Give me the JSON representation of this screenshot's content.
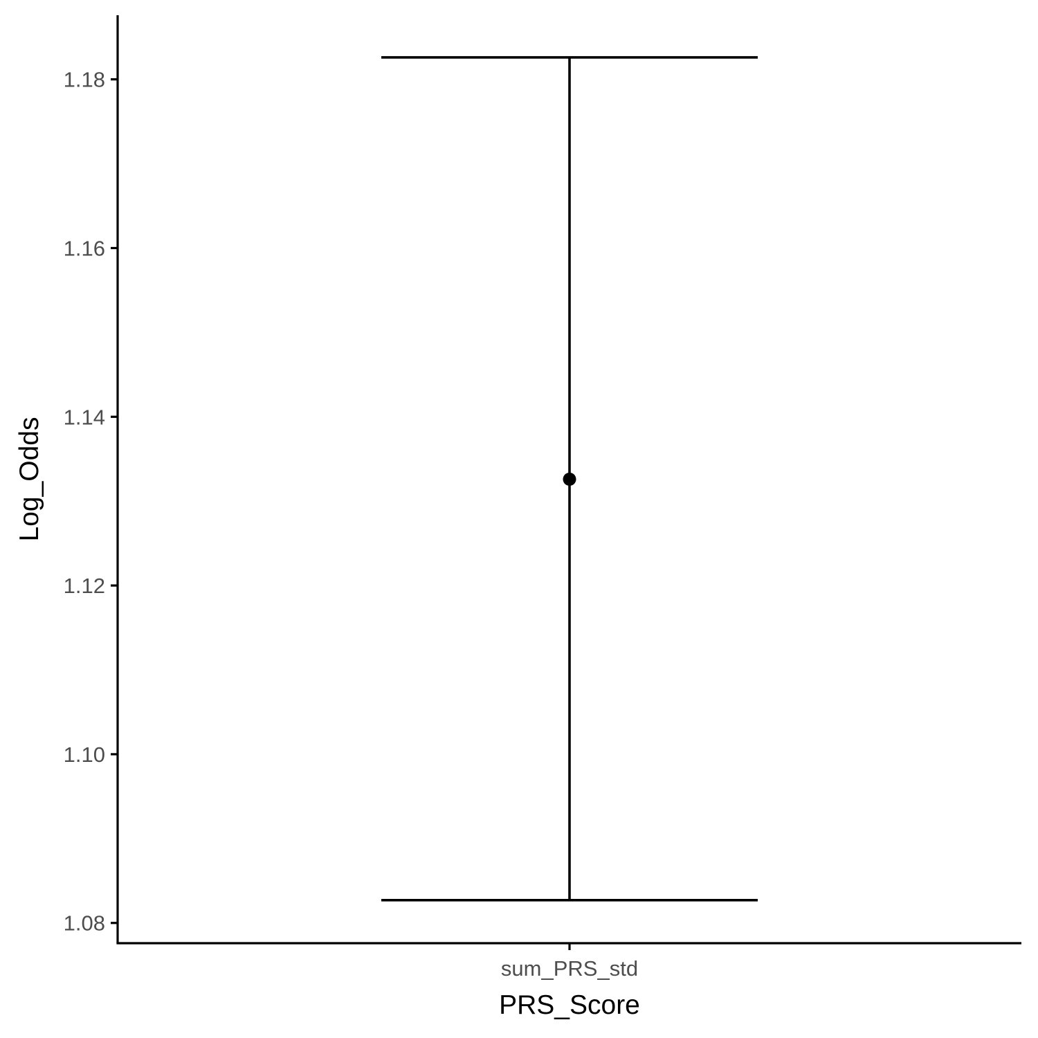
{
  "chart_data": {
    "type": "errorbar",
    "xlabel": "PRS_Score",
    "ylabel": "Log_Odds",
    "categories": [
      "sum_PRS_std"
    ],
    "points": [
      {
        "category": "sum_PRS_std",
        "y": 1.1326,
        "ymin": 1.0827,
        "ymax": 1.1826
      }
    ],
    "y_ticks": [
      1.08,
      1.1,
      1.12,
      1.14,
      1.16,
      1.18
    ],
    "y_tick_labels": [
      "1.08",
      "1.10",
      "1.12",
      "1.14",
      "1.16",
      "1.18"
    ],
    "ylim": [
      1.0776,
      1.1876
    ],
    "grid": false,
    "legend": "none",
    "colors": {
      "axis": "#000000",
      "tick_text": "#4d4d4d",
      "mark": "#000000"
    }
  }
}
